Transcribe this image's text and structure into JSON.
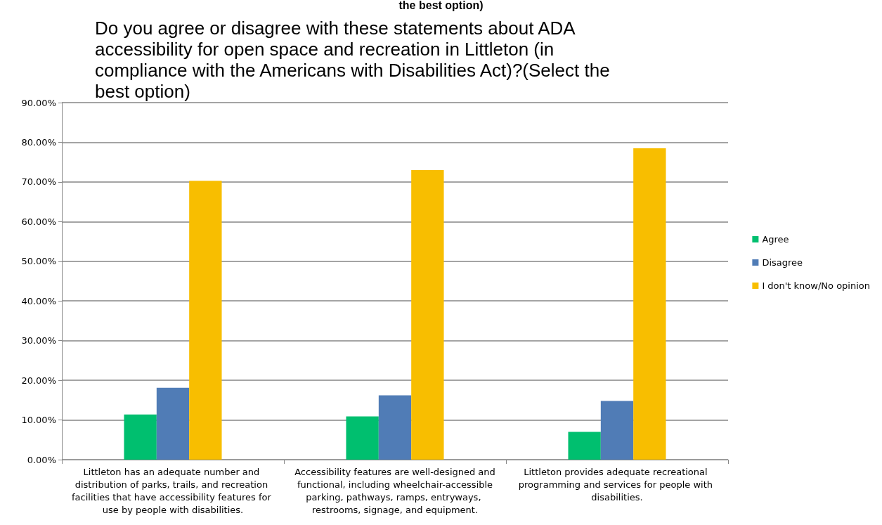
{
  "chart_data": {
    "type": "bar",
    "title": "Do you agree or disagree with these statements about ADA accessibility for open space and recreation in Littleton (in compliance with the Americans with Disabilities Act)?(Select the best option)",
    "annotations": [
      "the best option)"
    ],
    "categories": [
      "Littleton has an adequate number and distribution of parks, trails, and recreation facilities that have accessibility features for use by people with disabilities.",
      "Accessibility features are well-designed and functional, including wheelchair-accessible parking, pathways, ramps, entryways, restrooms, signage, and equipment.",
      "Littleton provides adequate recreational programming and services for people with disabilities."
    ],
    "series": [
      {
        "name": "Agree",
        "color": "#00bf6f",
        "values": [
          11.4,
          10.9,
          7.0
        ]
      },
      {
        "name": "Disagree",
        "color": "#507cb6",
        "values": [
          18.1,
          16.2,
          14.8
        ]
      },
      {
        "name": "I don't know/No opinion",
        "color": "#f8be00",
        "values": [
          70.3,
          73.0,
          78.5
        ]
      }
    ],
    "ylim": [
      0,
      90
    ],
    "yticks": [
      {
        "value": 0,
        "label": "0.00%"
      },
      {
        "value": 10,
        "label": "10.00%"
      },
      {
        "value": 20,
        "label": "20.00%"
      },
      {
        "value": 30,
        "label": "30.00%"
      },
      {
        "value": 40,
        "label": "40.00%"
      },
      {
        "value": 50,
        "label": "50.00%"
      },
      {
        "value": 60,
        "label": "60.00%"
      },
      {
        "value": 70,
        "label": "70.00%"
      },
      {
        "value": 80,
        "label": "80.00%"
      },
      {
        "value": 90,
        "label": "90.00%"
      }
    ],
    "grid": true,
    "legend": "right"
  }
}
